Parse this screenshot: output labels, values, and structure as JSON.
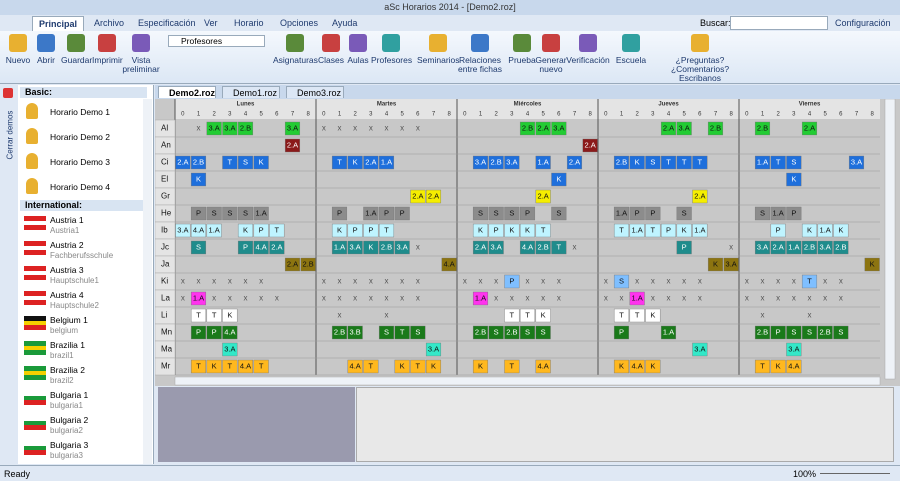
{
  "window": {
    "title": "aSc Horarios 2014 - [Demo2.roz]"
  },
  "menu": {
    "tabs": [
      "Principal",
      "Archivo",
      "Especificación",
      "Ver",
      "Horario",
      "Opciones",
      "Ayuda"
    ],
    "search_label": "Buscar:",
    "config": "Configuración"
  },
  "ribbon": {
    "buttons": [
      "Nuevo",
      "Abrir",
      "Guardar",
      "Imprimir",
      "Vista preliminar"
    ],
    "view_select": "Profesores",
    "buttons2": [
      "Asignaturas",
      "Clases",
      "Aulas",
      "Profesores",
      "Seminarios",
      "Relaciones entre fichas",
      "Prueba",
      "Generar nuevo",
      "Verificación",
      "Escuela",
      "¿Preguntas? ¿Comentarios? Escribanos"
    ]
  },
  "sidebar": {
    "close": "Cerrar demos",
    "basic_title": "Basic:",
    "basic": [
      "Horario Demo 1",
      "Horario Demo 2",
      "Horario Demo 3",
      "Horario Demo 4"
    ],
    "intl_title": "International:",
    "intl": [
      {
        "name": "Austria 1",
        "sub": "Austria1",
        "flag": [
          "#d22",
          "#fff",
          "#d22"
        ]
      },
      {
        "name": "Austria 2",
        "sub": "Fachberufsschule",
        "flag": [
          "#d22",
          "#fff",
          "#d22"
        ]
      },
      {
        "name": "Austria 3",
        "sub": "Hauptschule1",
        "flag": [
          "#d22",
          "#fff",
          "#d22"
        ]
      },
      {
        "name": "Austria 4",
        "sub": "Hauptschule2",
        "flag": [
          "#d22",
          "#fff",
          "#d22"
        ]
      },
      {
        "name": "Belgium 1",
        "sub": "belgium",
        "flag": [
          "#111",
          "#f5d000",
          "#d22"
        ]
      },
      {
        "name": "Brazilia 1",
        "sub": "brazil1",
        "flag": [
          "#1a9a3a",
          "#f5d000",
          "#1a9a3a"
        ]
      },
      {
        "name": "Brazilia 2",
        "sub": "brazil2",
        "flag": [
          "#1a9a3a",
          "#f5d000",
          "#1a9a3a"
        ]
      },
      {
        "name": "Bulgaria 1",
        "sub": "bulgaria1",
        "flag": [
          "#fff",
          "#1a9a3a",
          "#d22"
        ]
      },
      {
        "name": "Bulgaria 2",
        "sub": "bulgaria2",
        "flag": [
          "#fff",
          "#1a9a3a",
          "#d22"
        ]
      },
      {
        "name": "Bulgaria 3",
        "sub": "bulgaria3",
        "flag": [
          "#fff",
          "#1a9a3a",
          "#d22"
        ]
      }
    ]
  },
  "doc_tabs": [
    "Demo2.roz",
    "Demo1.roz",
    "Demo3.roz"
  ],
  "timetable": {
    "days": [
      "Lunes",
      "Martes",
      "Miércoles",
      "Jueves",
      "Viernes"
    ],
    "periods": [
      0,
      1,
      2,
      3,
      4,
      5,
      6,
      7,
      8
    ],
    "blocked_mark": "x",
    "rows": [
      {
        "label": "Al",
        "color": "#22cc33",
        "slots": [
          [
            null,
            true,
            "3.A",
            "3.A",
            "2.B",
            null,
            null,
            "3.A",
            null
          ],
          [
            true,
            true,
            true,
            true,
            true,
            true,
            true,
            null,
            null
          ],
          [
            null,
            null,
            null,
            null,
            "2.B",
            "2.A",
            "3.A",
            null,
            null
          ],
          [
            null,
            null,
            null,
            null,
            "2.A",
            "3.A",
            null,
            "2.B",
            null
          ],
          [
            null,
            "2.B",
            null,
            null,
            "2.A",
            null,
            null,
            null,
            null
          ]
        ]
      },
      {
        "label": "An",
        "color": "#8b1a1a",
        "slots": [
          [
            null,
            null,
            null,
            null,
            null,
            null,
            null,
            "2.A",
            null
          ],
          [
            null,
            null,
            null,
            null,
            null,
            null,
            null,
            null,
            null
          ],
          [
            null,
            null,
            null,
            null,
            null,
            null,
            null,
            null,
            "2.A"
          ],
          [
            null,
            null,
            null,
            null,
            null,
            null,
            null,
            null,
            null
          ],
          [
            null,
            null,
            null,
            null,
            null,
            null,
            null,
            null,
            null
          ]
        ]
      },
      {
        "label": "Ci",
        "color": "#1e6fdc",
        "slots": [
          [
            "2.A",
            "2.B",
            null,
            "T",
            "S",
            "K",
            null,
            null,
            null
          ],
          [
            null,
            "T",
            "K",
            "2.A",
            "1.A",
            null,
            null,
            null,
            null
          ],
          [
            null,
            "3.A",
            "2.B",
            "3.A",
            null,
            "1.A",
            null,
            "2.A",
            null
          ],
          [
            null,
            "2.B",
            "K",
            "S",
            "T",
            "T",
            "T",
            null,
            null
          ],
          [
            null,
            "1.A",
            "T",
            "S",
            null,
            null,
            null,
            "3.A",
            null
          ]
        ]
      },
      {
        "label": "El",
        "color": "#1e6fdc",
        "slots": [
          [
            null,
            "K",
            null,
            null,
            null,
            null,
            null,
            null,
            null
          ],
          [
            null,
            null,
            null,
            null,
            null,
            null,
            null,
            null,
            null
          ],
          [
            null,
            null,
            null,
            null,
            null,
            null,
            "K",
            null,
            null
          ],
          [
            null,
            null,
            null,
            null,
            null,
            null,
            null,
            null,
            null
          ],
          [
            null,
            null,
            null,
            "K",
            null,
            null,
            null,
            null,
            null
          ]
        ]
      },
      {
        "label": "Gr",
        "color": "#f5ee00",
        "slots": [
          [
            null,
            null,
            null,
            null,
            null,
            null,
            null,
            null,
            null
          ],
          [
            null,
            null,
            null,
            null,
            null,
            null,
            "2.A",
            "2.A",
            null
          ],
          [
            null,
            null,
            null,
            null,
            null,
            "2.A",
            null,
            null,
            null
          ],
          [
            null,
            null,
            null,
            null,
            null,
            null,
            "2.A",
            null,
            null
          ],
          [
            null,
            null,
            null,
            null,
            null,
            null,
            null,
            null,
            null
          ]
        ]
      },
      {
        "label": "He",
        "color": "#8c8c8c",
        "slots": [
          [
            null,
            "P",
            "S",
            "S",
            "S",
            "1.A",
            null,
            null,
            null
          ],
          [
            null,
            "P",
            null,
            "1.A",
            "P",
            "P",
            null,
            null,
            null
          ],
          [
            null,
            "S",
            "S",
            "S",
            "P",
            null,
            "S",
            null,
            null
          ],
          [
            null,
            "1.A",
            "P",
            "P",
            null,
            "S",
            null,
            null,
            null
          ],
          [
            null,
            "S",
            "1.A",
            "P",
            null,
            null,
            null,
            null,
            null
          ]
        ]
      },
      {
        "label": "Ib",
        "color": "#bff4ff",
        "slots": [
          [
            "3.A",
            "4.A",
            "1.A",
            null,
            "K",
            "P",
            "T",
            null,
            null
          ],
          [
            null,
            "K",
            "P",
            "P",
            "T",
            null,
            null,
            null,
            null
          ],
          [
            null,
            "K",
            "P",
            "K",
            "K",
            "T",
            null,
            null,
            null
          ],
          [
            null,
            "T",
            "1.A",
            "T",
            "P",
            "K",
            "1.A",
            null,
            null
          ],
          [
            null,
            null,
            "P",
            null,
            "K",
            "1.A",
            "K",
            null,
            null
          ]
        ]
      },
      {
        "label": "Jc",
        "color": "#1f8c8c",
        "slots": [
          [
            null,
            "S",
            null,
            null,
            "P",
            "4.A",
            "2.A",
            null,
            null
          ],
          [
            null,
            "1.A",
            "3.A",
            "K",
            "2.B",
            "3.A",
            true,
            null,
            null
          ],
          [
            null,
            "2.A",
            "3.A",
            null,
            "4.A",
            "2.B",
            "T",
            true,
            null
          ],
          [
            null,
            null,
            null,
            null,
            null,
            "P",
            null,
            null,
            true
          ],
          [
            null,
            "3.A",
            "2.A",
            "1.A",
            "2.B",
            "3.A",
            "2.B",
            null,
            null
          ]
        ]
      },
      {
        "label": "Ja",
        "color": "#8c7410",
        "slots": [
          [
            null,
            null,
            null,
            null,
            null,
            null,
            null,
            "2.A",
            "2.B"
          ],
          [
            null,
            null,
            null,
            null,
            null,
            null,
            null,
            null,
            "4.A"
          ],
          [
            null,
            null,
            null,
            null,
            null,
            null,
            null,
            null,
            null
          ],
          [
            null,
            null,
            null,
            null,
            null,
            null,
            null,
            "K",
            "3.A"
          ],
          [
            null,
            null,
            null,
            null,
            null,
            null,
            null,
            null,
            "K"
          ]
        ]
      },
      {
        "label": "Ki",
        "color": "#7fbfff",
        "slots": [
          [
            true,
            true,
            true,
            true,
            true,
            true,
            null,
            null,
            null
          ],
          [
            true,
            true,
            true,
            true,
            true,
            true,
            true,
            null,
            null
          ],
          [
            true,
            true,
            true,
            "P",
            true,
            true,
            true,
            null,
            null
          ],
          [
            true,
            "S",
            true,
            true,
            true,
            true,
            true,
            null,
            null
          ],
          [
            true,
            true,
            true,
            true,
            "T",
            true,
            true,
            null,
            null
          ]
        ]
      },
      {
        "label": "La",
        "color": "#ff33ee",
        "slots": [
          [
            true,
            "1.A",
            true,
            true,
            true,
            true,
            true,
            null,
            null
          ],
          [
            true,
            true,
            true,
            true,
            true,
            true,
            true,
            null,
            null
          ],
          [
            null,
            "1.A",
            true,
            true,
            true,
            true,
            true,
            null,
            null
          ],
          [
            true,
            true,
            "1.A",
            true,
            true,
            true,
            true,
            null,
            null
          ],
          [
            true,
            true,
            true,
            true,
            true,
            true,
            true,
            null,
            null
          ]
        ]
      },
      {
        "label": "Li",
        "color": "#ffffff",
        "slots": [
          [
            null,
            "T",
            "T",
            "K",
            null,
            null,
            null,
            null,
            null
          ],
          [
            null,
            true,
            null,
            null,
            true,
            null,
            null,
            null,
            null
          ],
          [
            null,
            null,
            null,
            "T",
            "T",
            "K",
            null,
            null,
            null
          ],
          [
            null,
            "T",
            "T",
            "K",
            null,
            null,
            null,
            null,
            null
          ],
          [
            null,
            true,
            null,
            null,
            true,
            null,
            null,
            null,
            null
          ]
        ]
      },
      {
        "label": "Mn",
        "color": "#1a7a1a",
        "slots": [
          [
            null,
            "P",
            "P",
            "4.A",
            null,
            null,
            null,
            null,
            null
          ],
          [
            null,
            "2.B",
            "3.B",
            null,
            "S",
            "T",
            "S",
            null,
            null
          ],
          [
            null,
            "2.B",
            "S",
            "2.B",
            "S",
            "S",
            null,
            null,
            null
          ],
          [
            null,
            "P",
            null,
            null,
            "1.A",
            null,
            null,
            null,
            null
          ],
          [
            null,
            "2.B",
            "P",
            "S",
            "S",
            "2.B",
            "S",
            null,
            null
          ]
        ]
      },
      {
        "label": "Ma",
        "color": "#33e8c8",
        "slots": [
          [
            null,
            null,
            null,
            "3.A",
            null,
            null,
            null,
            null,
            null
          ],
          [
            null,
            null,
            null,
            null,
            null,
            null,
            null,
            "3.A",
            null
          ],
          [
            null,
            null,
            null,
            null,
            null,
            null,
            null,
            null,
            null
          ],
          [
            null,
            null,
            null,
            null,
            null,
            null,
            "3.A",
            null,
            null
          ],
          [
            null,
            null,
            null,
            "3.A",
            null,
            null,
            null,
            null,
            null
          ]
        ]
      },
      {
        "label": "Mr",
        "color": "#ffb81e",
        "slots": [
          [
            null,
            "T",
            "K",
            "T",
            "4.A",
            "T",
            null,
            null,
            null
          ],
          [
            null,
            null,
            "4.A",
            "T",
            null,
            "K",
            "T",
            "K",
            null
          ],
          [
            null,
            "K",
            null,
            "T",
            null,
            "4.A",
            null,
            null,
            null
          ],
          [
            null,
            "K",
            "4.A",
            "K",
            null,
            null,
            null,
            null,
            null
          ],
          [
            null,
            "T",
            "K",
            "4.A",
            null,
            null,
            null,
            null,
            null
          ]
        ]
      }
    ]
  },
  "status": {
    "left": "Ready",
    "zoom": "100%"
  }
}
